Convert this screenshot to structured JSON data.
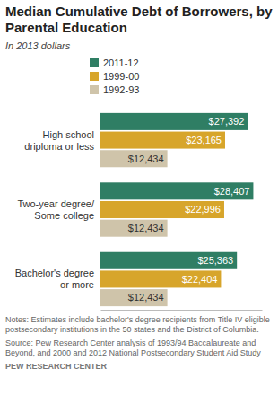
{
  "chart_data": {
    "type": "bar",
    "orientation": "horizontal",
    "title": "Median Cumulative Debt of Borrowers, by Parental Education",
    "subtitle": "In 2013 dollars",
    "categories": [
      "High school driploma or less",
      "Two-year degree/ Some college",
      "Bachelor's degree or more"
    ],
    "series": [
      {
        "name": "2011-12",
        "color": "#2f7e64",
        "values": [
          27392,
          28407,
          25363
        ],
        "value_labels": [
          "$27,392",
          "$28,407",
          "$25,363"
        ]
      },
      {
        "name": "1999-00",
        "color": "#d7a52b",
        "values": [
          23165,
          22996,
          22404
        ],
        "value_labels": [
          "$23,165",
          "$22,996",
          "$22,404"
        ]
      },
      {
        "name": "1992-93",
        "color": "#cfc4aa",
        "values": [
          12434,
          12434,
          12434
        ],
        "value_labels": [
          "$12,434",
          "$12,434",
          "$12,434"
        ]
      }
    ],
    "xlim": [
      0,
      30000
    ],
    "grid": false,
    "legend": "top",
    "data_labels": true,
    "tick_labels": "y",
    "annotations": [
      "Notes: Estimates include bachelor's degree recipients from Title IV eligible postsecondary institutions in the 50 states and the District of Columbia.",
      "Source: Pew Research Center analysis of 1993/94 Baccalaureate and Beyond, and 2000 and 2012 National Postsecondary Student Aid Study",
      "PEW RESEARCH CENTER"
    ]
  }
}
